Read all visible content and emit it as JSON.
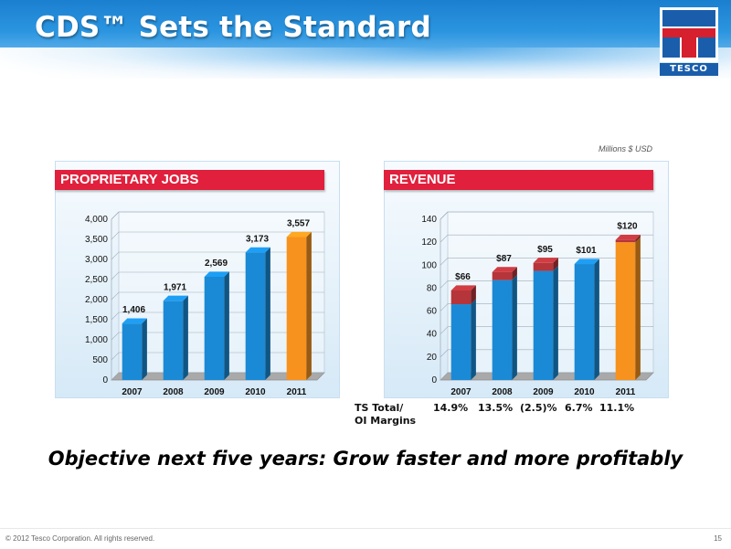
{
  "slide": {
    "title": "CDS™ Sets the Standard",
    "logo_text": "TESCO",
    "units_note": "Millions $ USD",
    "objective": "Objective next five years: Grow faster and more profitably",
    "copyright": "© 2012 Tesco Corporation. All rights reserved.",
    "page_number": "15"
  },
  "margins": {
    "label_line1": "TS Total/",
    "label_line2": "OI Margins",
    "values": [
      "14.9%",
      "13.5%",
      "(2.5)%",
      "6.7%",
      "11.1%"
    ]
  },
  "colors": {
    "bar_blue": "#1a8ad6",
    "bar_orange": "#f7921e",
    "bar_red": "#b5353a",
    "banner_red": "#e0203c"
  },
  "chart_data": [
    {
      "type": "bar",
      "title": "PROPRIETARY JOBS",
      "categories": [
        "2007",
        "2008",
        "2009",
        "2010",
        "2011"
      ],
      "values": [
        1406,
        1971,
        2569,
        3173,
        3557
      ],
      "data_labels": [
        "1,406",
        "1,971",
        "2,569",
        "3,173",
        "3,557"
      ],
      "highlight_index": 4,
      "ylim": [
        0,
        4000
      ],
      "yticks": [
        0,
        500,
        1000,
        1500,
        2000,
        2500,
        3000,
        3500,
        4000
      ],
      "ytick_labels": [
        "0",
        "500",
        "1,000",
        "1,500",
        "2,000",
        "2,500",
        "3,000",
        "3,500",
        "4,000"
      ],
      "grid": true
    },
    {
      "type": "bar",
      "title": "REVENUE",
      "categories": [
        "2007",
        "2008",
        "2009",
        "2010",
        "2011"
      ],
      "values": [
        66,
        87,
        95,
        101,
        120
      ],
      "series": [
        {
          "values": [
            66,
            87,
            95,
            101,
            120
          ]
        },
        {
          "values": [
            12,
            7,
            7,
            0,
            2
          ]
        }
      ],
      "data_labels": [
        "$66",
        "$87",
        "$95",
        "$101",
        "$120"
      ],
      "highlight_index": 4,
      "ylim": [
        0,
        140
      ],
      "yticks": [
        0,
        20,
        40,
        60,
        80,
        100,
        120,
        140
      ],
      "ytick_labels": [
        "0",
        "20",
        "40",
        "60",
        "80",
        "100",
        "120",
        "140"
      ],
      "grid": true
    }
  ]
}
